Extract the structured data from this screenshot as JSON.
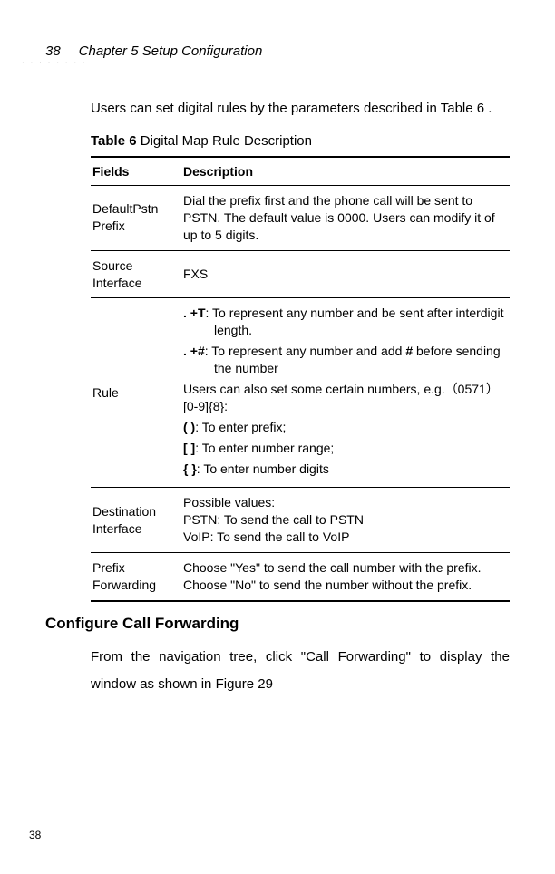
{
  "header": {
    "page_num_top": "38",
    "chapter": "Chapter 5 Setup Configuration"
  },
  "intro": "Users can set digital rules by the parameters described in Table 6 .",
  "table": {
    "caption_bold": "Table 6",
    "caption_rest": "  Digital Map Rule Description",
    "head_fields": "Fields",
    "head_desc": "Description",
    "rows": {
      "r1_field": "DefaultPstn Prefix",
      "r1_desc": "Dial the prefix first and the phone call will be sent to PSTN. The default value is 0000. Users can modify it of up to 5 digits.",
      "r2_field": "Source Interface",
      "r2_desc": "FXS",
      "r3_field": "Rule",
      "r3_l1a": ". +T",
      "r3_l1b": ": To represent any number and be sent after interdigit length.",
      "r3_l2a": ". +#",
      "r3_l2b": ": To represent any number and add ",
      "r3_l2c": "#",
      "r3_l2d": " before sending the number",
      "r3_l3": "Users can also set some certain numbers, e.g.（0571） [0-9]{8}:",
      "r3_l4a": "( )",
      "r3_l4b": ": To enter prefix;",
      "r3_l5a": "[ ]",
      "r3_l5b": ": To enter number range;",
      "r3_l6a": "{ }",
      "r3_l6b": ": To enter number digits",
      "r4_field": "Destination Interface",
      "r4_l1": "Possible values:",
      "r4_l2": "PSTN: To send the call to PSTN",
      "r4_l3": "VoIP: To send the call to VoIP",
      "r5_field": "Prefix Forwarding",
      "r5_desc": "Choose \"Yes\" to send the call number with the prefix. Choose \"No\" to send the number without the prefix."
    }
  },
  "section_heading": "Configure Call Forwarding",
  "section_para": "From the navigation tree, click \"Call Forwarding\" to display the window as shown in Figure 29",
  "footer_page": "38"
}
